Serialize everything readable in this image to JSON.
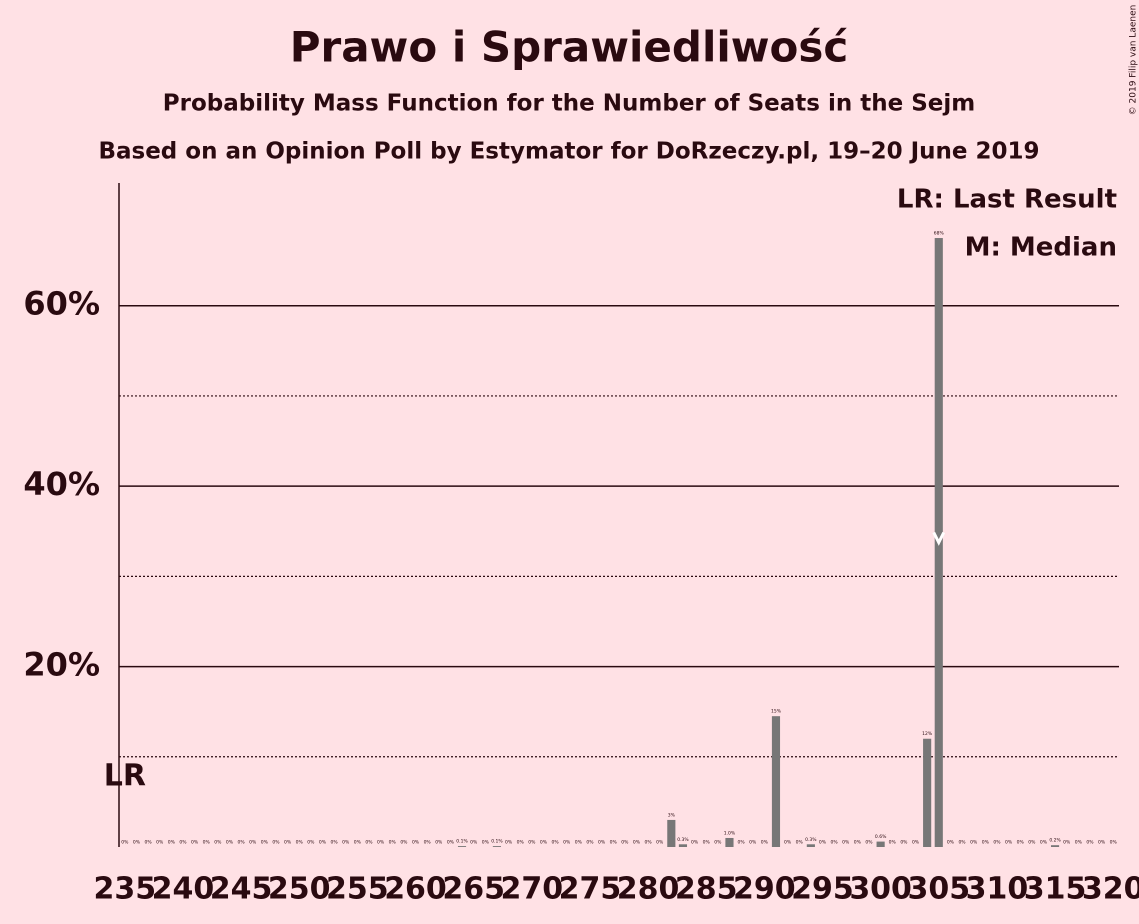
{
  "chart_data": {
    "type": "bar",
    "title": "Prawo i Sprawiedliwość",
    "subtitle": "Probability Mass Function for the Number of Seats in the Sejm",
    "caption": "Based on an Opinion Poll by Estymator for DoRzeczy.pl, 19–20 June 2019",
    "copyright": "© 2019 Filip van Laenen",
    "lr_legend": "LR: Last Result",
    "median_legend": "M: Median",
    "last_result_label": "LR",
    "last_result": 235,
    "median": 305,
    "color": "#777777",
    "x": [
      235,
      236,
      237,
      238,
      239,
      240,
      241,
      242,
      243,
      244,
      245,
      246,
      247,
      248,
      249,
      250,
      251,
      252,
      253,
      254,
      255,
      256,
      257,
      258,
      259,
      260,
      261,
      262,
      263,
      264,
      265,
      266,
      267,
      268,
      269,
      270,
      271,
      272,
      273,
      274,
      275,
      276,
      277,
      278,
      279,
      280,
      281,
      282,
      283,
      284,
      285,
      286,
      287,
      288,
      289,
      290,
      291,
      292,
      293,
      294,
      295,
      296,
      297,
      298,
      299,
      300,
      301,
      302,
      303,
      304,
      305,
      306,
      307,
      308,
      309,
      310,
      311,
      312,
      313,
      314,
      315,
      316,
      317,
      318,
      319,
      320
    ],
    "values": [
      0,
      0,
      0,
      0,
      0,
      0,
      0,
      0,
      0,
      0,
      0,
      0,
      0,
      0,
      0,
      0,
      0,
      0,
      0,
      0,
      0,
      0,
      0,
      0,
      0,
      0,
      0,
      0,
      0,
      0.1,
      0,
      0,
      0.1,
      0,
      0,
      0,
      0,
      0,
      0,
      0,
      0,
      0,
      0,
      0,
      0,
      0,
      0,
      3,
      0.3,
      0,
      0,
      0,
      1.0,
      0,
      0,
      0,
      14.5,
      0,
      0,
      0.3,
      0,
      0,
      0,
      0,
      0,
      0.6,
      0,
      0,
      0,
      12,
      67.5,
      0,
      0,
      0,
      0,
      0,
      0,
      0,
      0,
      0,
      0.2,
      0,
      0,
      0,
      0,
      0
    ],
    "value_labels": [
      "0%",
      "0%",
      "0%",
      "0%",
      "0%",
      "0%",
      "0%",
      "0%",
      "0%",
      "0%",
      "0%",
      "0%",
      "0%",
      "0%",
      "0%",
      "0%",
      "0%",
      "0%",
      "0%",
      "0%",
      "0%",
      "0%",
      "0%",
      "0%",
      "0%",
      "0%",
      "0%",
      "0%",
      "0%",
      "0.1%",
      "0%",
      "0%",
      "0.1%",
      "0%",
      "0%",
      "0%",
      "0%",
      "0%",
      "0%",
      "0%",
      "0%",
      "0%",
      "0%",
      "0%",
      "0%",
      "0%",
      "0%",
      "3%",
      "0.3%",
      "0%",
      "0%",
      "0%",
      "1.0%",
      "0%",
      "0%",
      "0%",
      "15%",
      "0%",
      "0%",
      "0.3%",
      "0%",
      "0%",
      "0%",
      "0%",
      "0%",
      "0.6%",
      "0%",
      "0%",
      "0%",
      "12%",
      "68%",
      "0%",
      "0%",
      "0%",
      "0%",
      "0%",
      "0%",
      "0%",
      "0%",
      "0%",
      "0.2%",
      "0%",
      "0%",
      "0%",
      "0%",
      "0%"
    ],
    "xlim": [
      234.5,
      320.5
    ],
    "xticks": [
      235,
      240,
      245,
      250,
      255,
      260,
      265,
      270,
      275,
      280,
      285,
      290,
      295,
      300,
      305,
      310,
      315,
      320
    ],
    "ylim": [
      0,
      73.6
    ],
    "yticks": [
      {
        "value": 20,
        "label": "20%"
      },
      {
        "value": 40,
        "label": "40%"
      },
      {
        "value": 60,
        "label": "60%"
      }
    ],
    "minor_yticks": [
      10,
      30,
      50
    ],
    "grid": true
  }
}
